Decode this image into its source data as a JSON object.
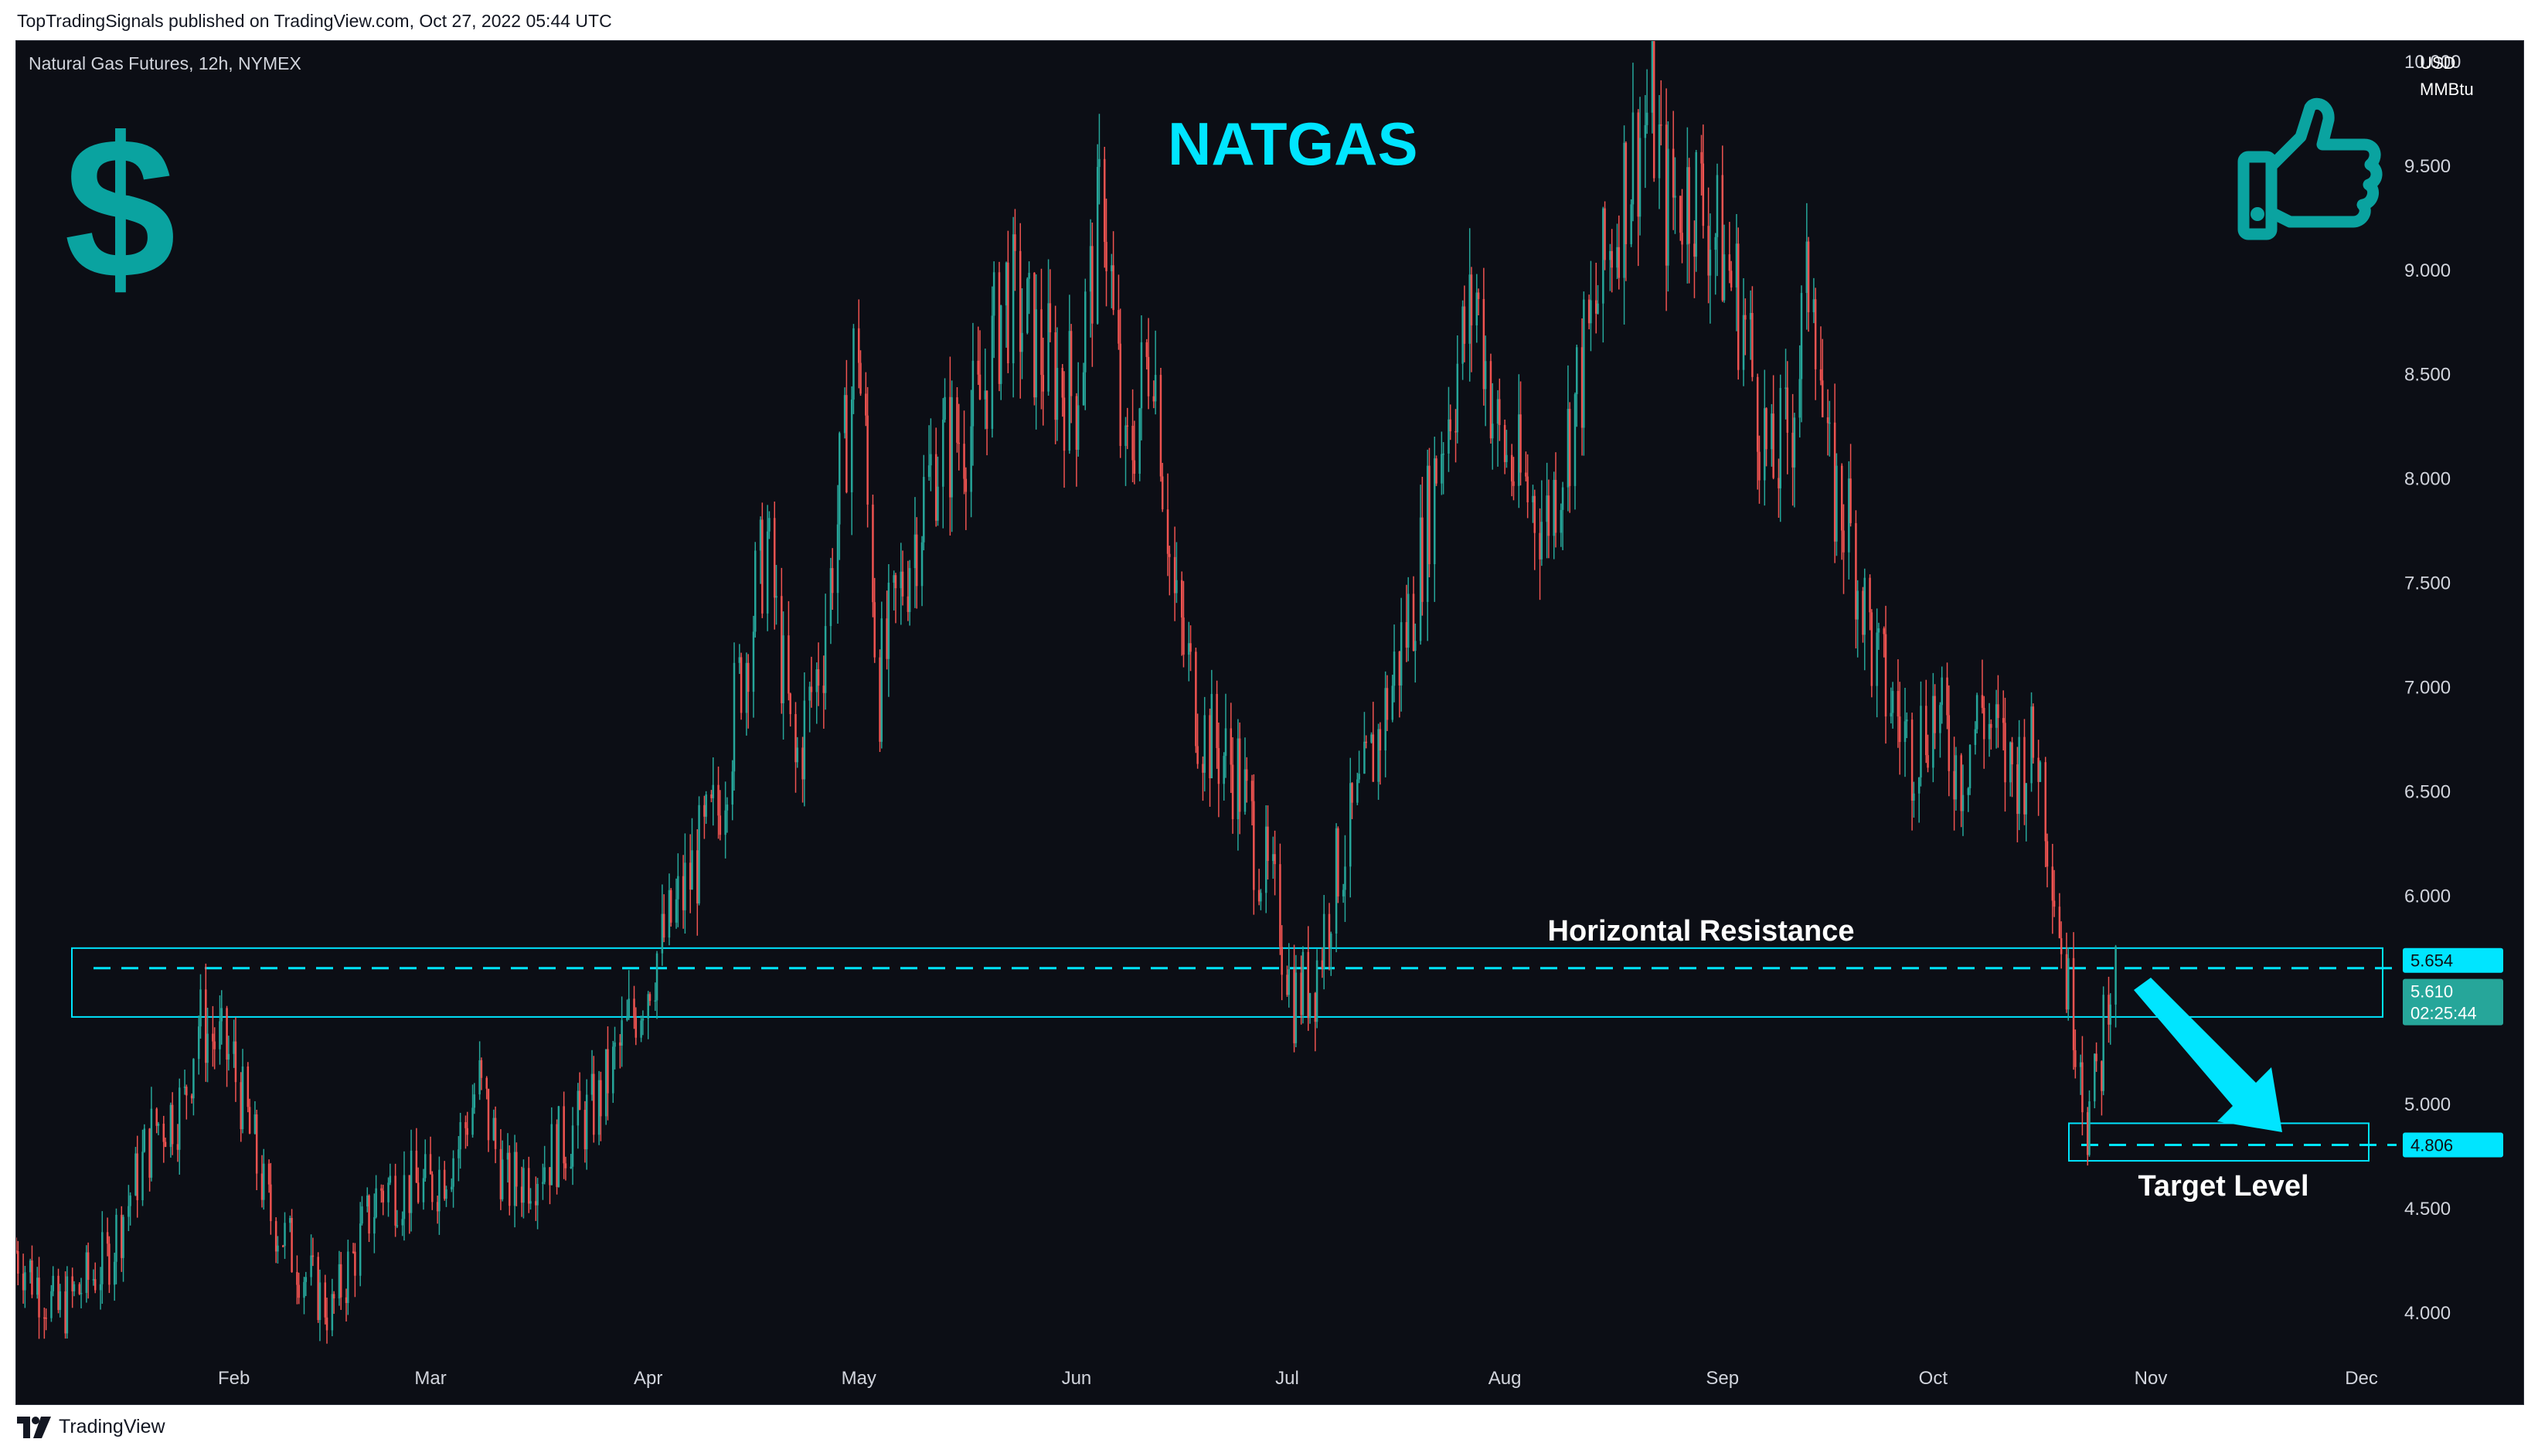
{
  "header": {
    "published_by": "TopTradingSignals published on TradingView.com, Oct 27, 2022 05:44 UTC"
  },
  "footer": {
    "brand": "TradingView",
    "icon": "tradingview-logo-icon"
  },
  "chart": {
    "symbol_line": "Natural Gas Futures, 12h, NYMEX",
    "title": "NATGAS",
    "currency": "USD",
    "unit": "MMBtu",
    "icons": [
      "dollar-icon",
      "thumbs-up-icon"
    ],
    "dollar_glyph": "$"
  },
  "colors": {
    "background": "#0c0e15",
    "up": "#26a69a",
    "down": "#ef5350",
    "accent": "#00e5ff",
    "axis_text": "#d1d4dc",
    "current_price_bg": "#26a69a"
  },
  "annotations": {
    "resistance_label": "Horizontal Resistance",
    "target_label": "Target Level",
    "resistance_zone": [
      5.42,
      5.75
    ],
    "resistance_line": 5.654,
    "target_zone": [
      4.73,
      4.91
    ],
    "target_line": 4.806
  },
  "price_labels": {
    "resistance": "5.654",
    "current": "5.610",
    "countdown": "02:25:44",
    "target": "4.806"
  },
  "chart_data": {
    "type": "candlestick",
    "title": "NATGAS",
    "ylabel": "USD / MMBtu",
    "ylim": [
      3.8,
      10.1
    ],
    "y_ticks": [
      "4.000",
      "4.500",
      "5.000",
      "5.500",
      "6.000",
      "6.500",
      "7.000",
      "7.500",
      "8.000",
      "8.500",
      "9.000",
      "9.500",
      "10.000"
    ],
    "x_ticks": [
      {
        "label": "Feb",
        "date": "2022-02-01"
      },
      {
        "label": "Mar",
        "date": "2022-03-01"
      },
      {
        "label": "Apr",
        "date": "2022-04-01"
      },
      {
        "label": "May",
        "date": "2022-05-01"
      },
      {
        "label": "Jun",
        "date": "2022-06-01"
      },
      {
        "label": "Jul",
        "date": "2022-07-01"
      },
      {
        "label": "Aug",
        "date": "2022-08-01"
      },
      {
        "label": "Sep",
        "date": "2022-09-01"
      },
      {
        "label": "Oct",
        "date": "2022-10-01"
      },
      {
        "label": "Nov",
        "date": "2022-11-01"
      },
      {
        "label": "Dec",
        "date": "2022-12-01"
      }
    ],
    "xlim": [
      "2022-01-01",
      "2022-12-06"
    ],
    "series": [
      {
        "date": "2022-01-01",
        "close": 4.3
      },
      {
        "date": "2022-01-07",
        "close": 4.0
      },
      {
        "date": "2022-01-14",
        "close": 4.25
      },
      {
        "date": "2022-01-21",
        "close": 4.9
      },
      {
        "date": "2022-01-25",
        "close": 5.0
      },
      {
        "date": "2022-01-27",
        "close": 5.4
      },
      {
        "date": "2022-02-01",
        "close": 5.2
      },
      {
        "date": "2022-02-06",
        "close": 4.5
      },
      {
        "date": "2022-02-11",
        "close": 4.2
      },
      {
        "date": "2022-02-15",
        "close": 4.0
      },
      {
        "date": "2022-02-22",
        "close": 4.6
      },
      {
        "date": "2022-03-01",
        "close": 4.6
      },
      {
        "date": "2022-03-05",
        "close": 4.8
      },
      {
        "date": "2022-03-08",
        "close": 5.1
      },
      {
        "date": "2022-03-12",
        "close": 4.6
      },
      {
        "date": "2022-03-18",
        "close": 4.75
      },
      {
        "date": "2022-03-25",
        "close": 5.0
      },
      {
        "date": "2022-04-01",
        "close": 5.6
      },
      {
        "date": "2022-04-06",
        "close": 6.0
      },
      {
        "date": "2022-04-11",
        "close": 6.4
      },
      {
        "date": "2022-04-14",
        "close": 7.0
      },
      {
        "date": "2022-04-18",
        "close": 7.7
      },
      {
        "date": "2022-04-22",
        "close": 6.6
      },
      {
        "date": "2022-04-26",
        "close": 7.2
      },
      {
        "date": "2022-05-01",
        "close": 8.7
      },
      {
        "date": "2022-05-04",
        "close": 7.0
      },
      {
        "date": "2022-05-08",
        "close": 7.6
      },
      {
        "date": "2022-05-12",
        "close": 8.1
      },
      {
        "date": "2022-05-18",
        "close": 8.3
      },
      {
        "date": "2022-05-22",
        "close": 8.9
      },
      {
        "date": "2022-05-27",
        "close": 8.6
      },
      {
        "date": "2022-06-01",
        "close": 8.4
      },
      {
        "date": "2022-06-05",
        "close": 9.4
      },
      {
        "date": "2022-06-08",
        "close": 8.0
      },
      {
        "date": "2022-06-12",
        "close": 8.7
      },
      {
        "date": "2022-06-15",
        "close": 7.4
      },
      {
        "date": "2022-06-19",
        "close": 6.8
      },
      {
        "date": "2022-06-24",
        "close": 6.6
      },
      {
        "date": "2022-06-27",
        "close": 6.2
      },
      {
        "date": "2022-06-30",
        "close": 5.9
      },
      {
        "date": "2022-07-02",
        "close": 5.5
      },
      {
        "date": "2022-07-05",
        "close": 5.6
      },
      {
        "date": "2022-07-08",
        "close": 6.1
      },
      {
        "date": "2022-07-12",
        "close": 6.5
      },
      {
        "date": "2022-07-19",
        "close": 7.4
      },
      {
        "date": "2022-07-23",
        "close": 8.2
      },
      {
        "date": "2022-07-28",
        "close": 8.9
      },
      {
        "date": "2022-07-31",
        "close": 8.2
      },
      {
        "date": "2022-08-03",
        "close": 8.0
      },
      {
        "date": "2022-08-07",
        "close": 7.8
      },
      {
        "date": "2022-08-10",
        "close": 8.2
      },
      {
        "date": "2022-08-14",
        "close": 8.8
      },
      {
        "date": "2022-08-18",
        "close": 9.4
      },
      {
        "date": "2022-08-22",
        "close": 9.8
      },
      {
        "date": "2022-08-24",
        "close": 9.3
      },
      {
        "date": "2022-08-28",
        "close": 9.4
      },
      {
        "date": "2022-09-01",
        "close": 9.1
      },
      {
        "date": "2022-09-04",
        "close": 8.8
      },
      {
        "date": "2022-09-08",
        "close": 8.0
      },
      {
        "date": "2022-09-11",
        "close": 8.3
      },
      {
        "date": "2022-09-14",
        "close": 9.1
      },
      {
        "date": "2022-09-16",
        "close": 8.0
      },
      {
        "date": "2022-09-19",
        "close": 7.8
      },
      {
        "date": "2022-09-23",
        "close": 7.1
      },
      {
        "date": "2022-09-28",
        "close": 6.7
      },
      {
        "date": "2022-10-01",
        "close": 6.9
      },
      {
        "date": "2022-10-05",
        "close": 6.6
      },
      {
        "date": "2022-10-08",
        "close": 6.9
      },
      {
        "date": "2022-10-12",
        "close": 6.6
      },
      {
        "date": "2022-10-16",
        "close": 6.7
      },
      {
        "date": "2022-10-18",
        "close": 6.2
      },
      {
        "date": "2022-10-20",
        "close": 5.6
      },
      {
        "date": "2022-10-22",
        "close": 5.3
      },
      {
        "date": "2022-10-23",
        "close": 4.9
      },
      {
        "date": "2022-10-25",
        "close": 5.2
      },
      {
        "date": "2022-10-26",
        "close": 5.6
      },
      {
        "date": "2022-10-27",
        "close": 5.61
      }
    ]
  }
}
